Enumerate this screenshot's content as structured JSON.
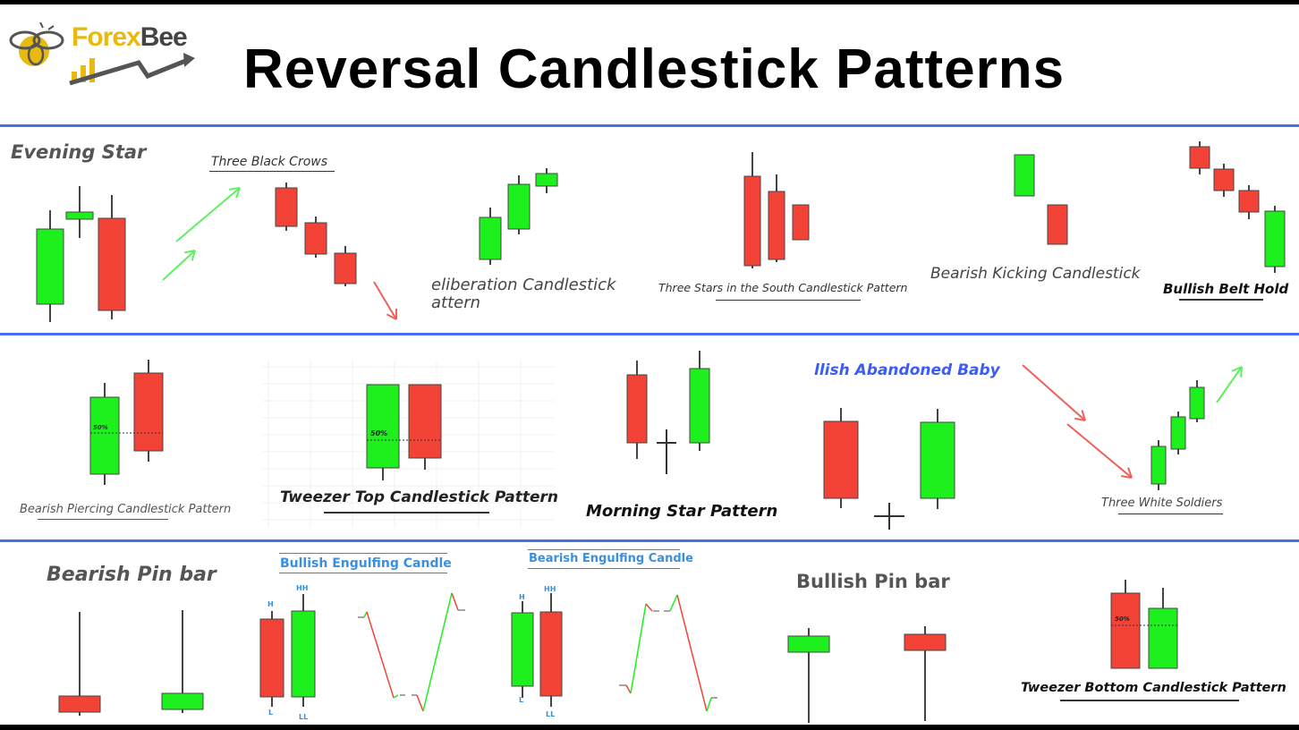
{
  "header": {
    "logo_text_part1": "Forex",
    "logo_text_part2": "Bee",
    "title": "Reversal Candlestick Patterns"
  },
  "colors": {
    "bullish": "#1ef01e",
    "bearish": "#f24336",
    "separator": "#4b6cf0",
    "label_blue": "#3a8fe0",
    "logo_yellow": "#e8b90f"
  },
  "row1": {
    "evening_star": "Evening Star",
    "three_black_crows": "Three Black Crows",
    "deliberation_line1": "eliberation Candlestick",
    "deliberation_line2": "attern",
    "three_stars_south": "Three Stars in the South Candlestick Pattern",
    "bearish_kicking": "Bearish Kicking Candlestick",
    "bullish_belt_hold": "Bullish Belt Hold"
  },
  "row2": {
    "bearish_piercing": "Bearish Piercing Candlestick Pattern",
    "bearish_piercing_pct": "50%",
    "tweezer_top": "Tweezer Top Candlestick Pattern",
    "tweezer_top_pct": "50%",
    "morning_star": "Morning Star Pattern",
    "abandoned_baby": "llish Abandoned Baby",
    "three_white_soldiers": "Three White Soldiers"
  },
  "row3": {
    "bearish_pin_bar": "Bearish Pin bar",
    "bullish_engulfing": "Bullish Engulfing Candle",
    "bullish_engulfing_marks": [
      "H",
      "L",
      "HH",
      "LL"
    ],
    "bearish_engulfing": "Bearish Engulfing Candle",
    "bearish_engulfing_marks": [
      "H",
      "L",
      "HH",
      "LL"
    ],
    "bullish_pin_bar": "Bullish Pin bar",
    "tweezer_bottom": "Tweezer Bottom Candlestick Pattern",
    "tweezer_bottom_pct": "50%"
  }
}
